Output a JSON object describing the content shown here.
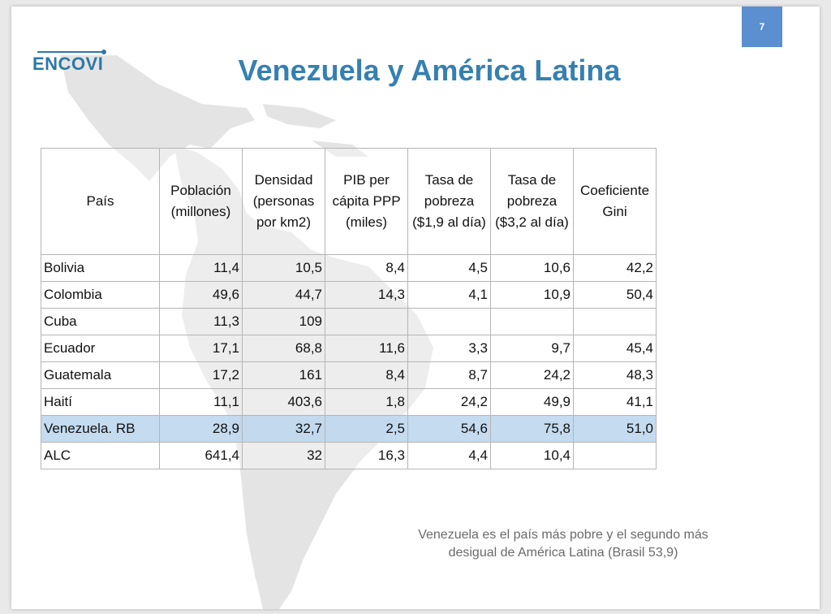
{
  "logo": {
    "text": "ENCOVI"
  },
  "page_number": "7",
  "title": "Venezuela y América Latina",
  "table": {
    "headers": [
      "País",
      "Población (millones)",
      "Densidad (personas por km2)",
      "PIB per cápita PPP (miles)",
      "Tasa de pobreza ($1,9 al día)",
      "Tasa de pobreza ($3,2 al día)",
      "Coeficiente Gini"
    ],
    "rows": [
      [
        "Bolivia",
        "11,4",
        "10,5",
        "8,4",
        "4,5",
        "10,6",
        "42,2"
      ],
      [
        "Colombia",
        "49,6",
        "44,7",
        "14,3",
        "4,1",
        "10,9",
        "50,4"
      ],
      [
        "Cuba",
        "11,3",
        "109",
        "",
        "",
        "",
        ""
      ],
      [
        "Ecuador",
        "17,1",
        "68,8",
        "11,6",
        "3,3",
        "9,7",
        "45,4"
      ],
      [
        "Guatemala",
        "17,2",
        "161",
        "8,4",
        "8,7",
        "24,2",
        "48,3"
      ],
      [
        "Haití",
        "11,1",
        "403,6",
        "1,8",
        "24,2",
        "49,9",
        "41,1"
      ],
      [
        "Venezuela. RB",
        "28,9",
        "32,7",
        "2,5",
        "54,6",
        "75,8",
        "51,0"
      ],
      [
        "ALC",
        "641,4",
        "32",
        "16,3",
        "4,4",
        "10,4",
        ""
      ]
    ],
    "highlight_color": "#bed7ee"
  },
  "note": {
    "line1": "Venezuela es el país más pobre y el segundo más",
    "line2": "desigual de América Latina (Brasil 53,9)"
  },
  "colors": {
    "title": "#3580b0",
    "page_badge": "#5b8fd0",
    "logo": "#2d78a6"
  }
}
